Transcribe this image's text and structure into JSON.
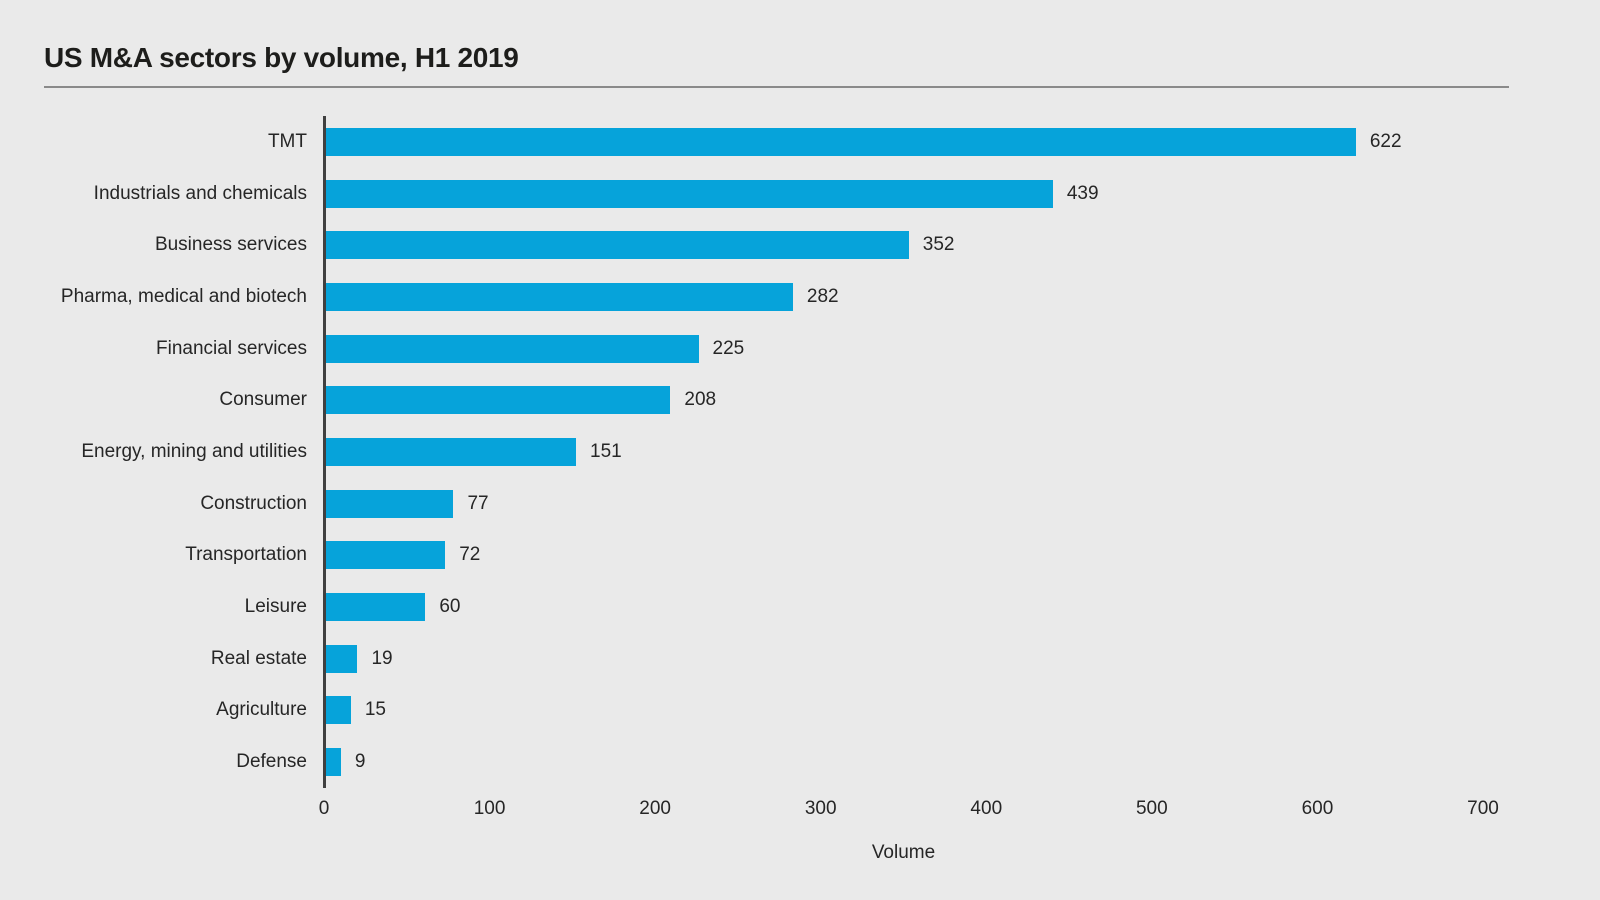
{
  "chart_data": {
    "type": "bar",
    "orientation": "horizontal",
    "title": "US M&A sectors by volume, H1 2019",
    "xlabel": "Volume",
    "ylabel": "",
    "categories": [
      "TMT",
      "Industrials and chemicals",
      "Business services",
      "Pharma, medical and biotech",
      "Financial services",
      "Consumer",
      "Energy, mining and utilities",
      "Construction",
      "Transportation",
      "Leisure",
      "Real estate",
      "Agriculture",
      "Defense"
    ],
    "values": [
      622,
      439,
      352,
      282,
      225,
      208,
      151,
      77,
      72,
      60,
      19,
      15,
      9
    ],
    "data_labels": [
      "622",
      "439",
      "352",
      "282",
      "225",
      "208",
      "151",
      "77",
      "72",
      "60",
      "19",
      "15",
      "9"
    ],
    "xlim": [
      0,
      700
    ],
    "xticks": [
      0,
      100,
      200,
      300,
      400,
      500,
      600,
      700
    ],
    "grid": false,
    "legend": false,
    "colors": {
      "bar": "#06a3da",
      "background": "#eaeaea",
      "axis_line": "#404040",
      "text": "#262626",
      "title_text": "#1d1d1b",
      "divider": "#8a8a8a"
    }
  }
}
